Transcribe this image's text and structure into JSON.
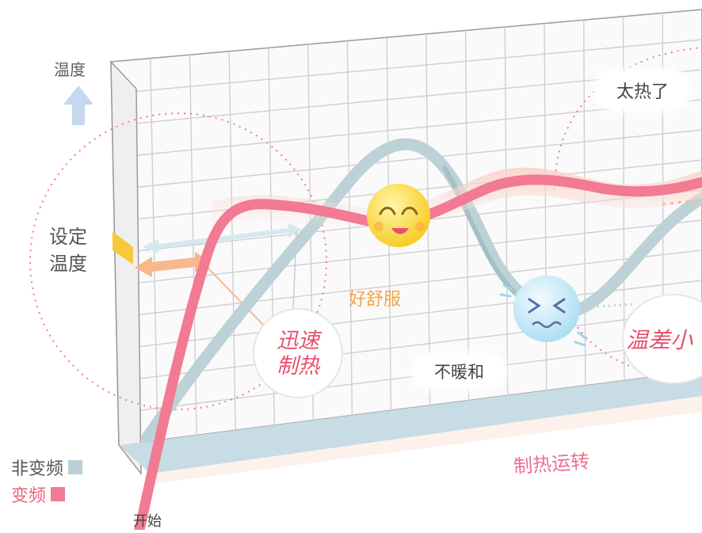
{
  "diagram": {
    "axis_label": "温度",
    "set_temperature_label": [
      "设定",
      "温度"
    ],
    "annotations": {
      "comfortable": "好舒服",
      "not_warm": "不暖和",
      "too_hot": "太热了",
      "quick_heating": [
        "迅速",
        "制热"
      ],
      "small_difference": "温差小",
      "heating_operation": "制热运转",
      "start": "开始"
    },
    "legend": [
      {
        "label": "非变频",
        "color": "#b9d1d6"
      },
      {
        "label": "变频",
        "color": "#f27a93"
      }
    ],
    "icons": {
      "happy_face": "smiling-face-icon",
      "cold_face": "shivering-face-icon",
      "up_arrow": "up-arrow-icon"
    },
    "colors": {
      "inverter_curve": "#f27a93",
      "non_inverter_curve": "#bcd2d6",
      "grid": "#c9c9c9",
      "wall_base": "#c7dce4",
      "dotted_circle": "#f27a93",
      "happy_face": "#fbd93a",
      "cold_face": "#bfe6f4"
    }
  }
}
